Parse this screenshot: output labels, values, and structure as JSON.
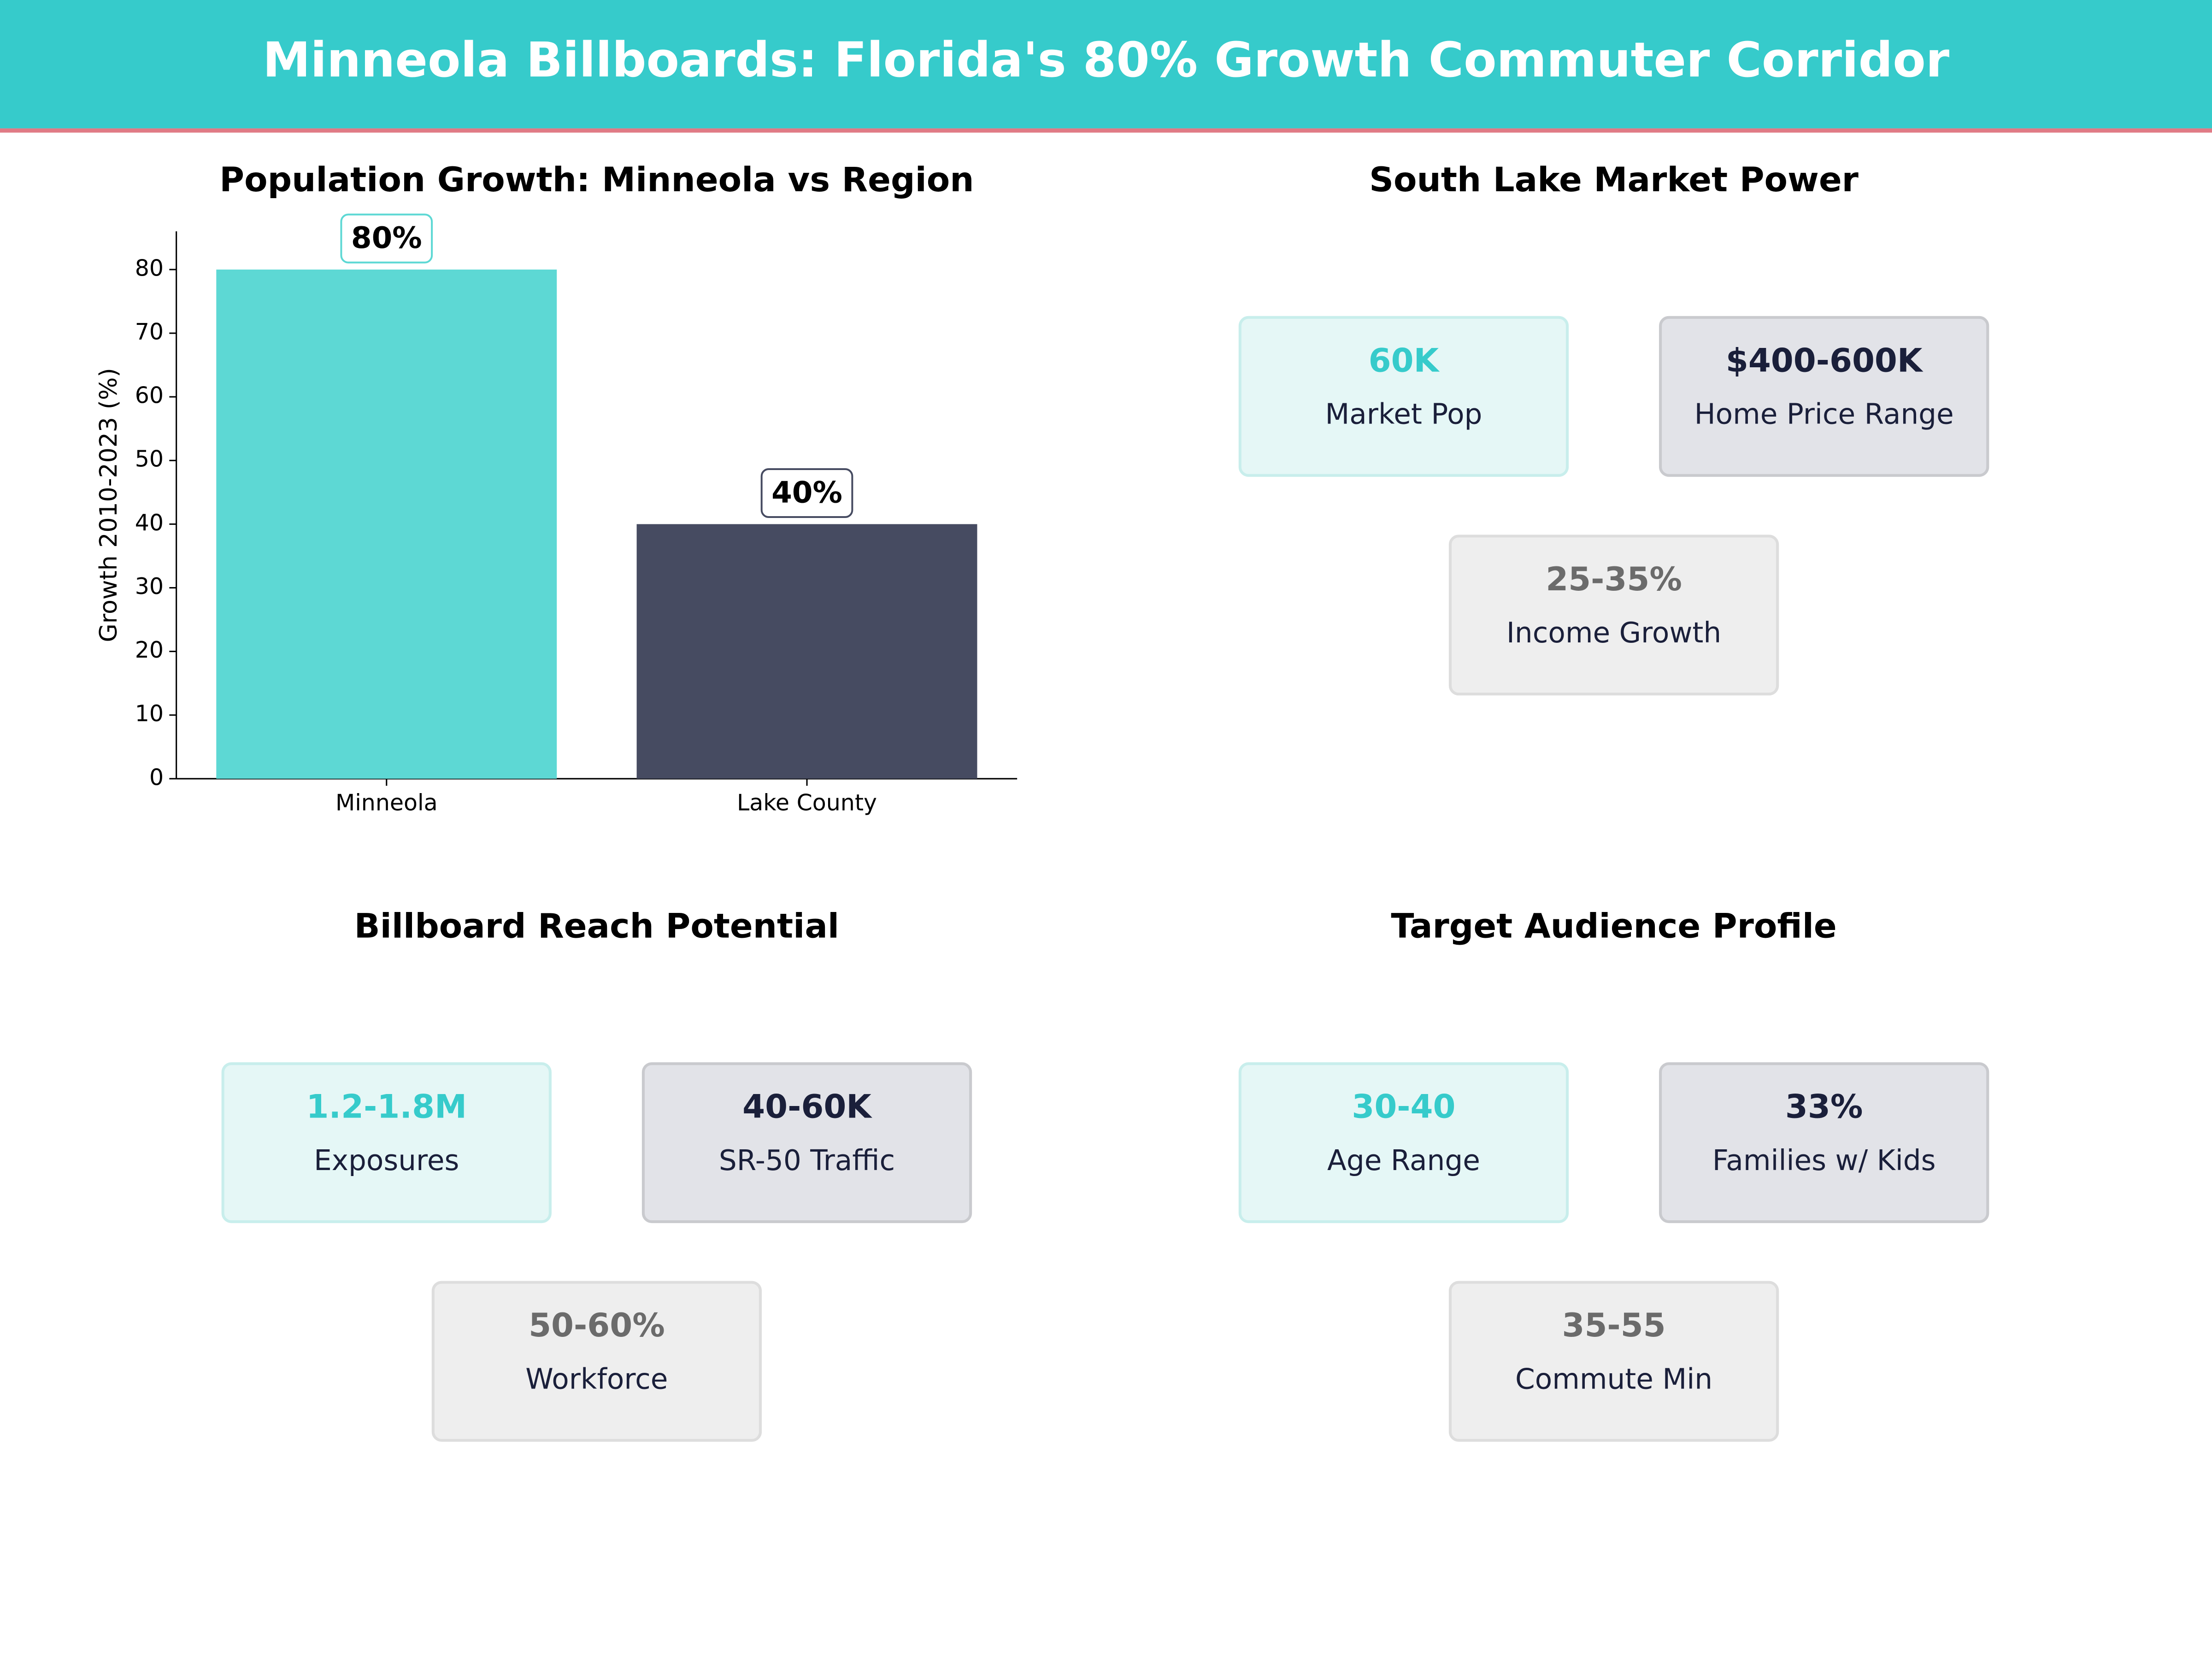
{
  "title": "Minneola Billboards: Florida's 80% Growth Commuter Corridor",
  "chart_data": {
    "type": "bar",
    "title": "Population Growth: Minneola vs Region",
    "categories": [
      "Minneola",
      "Lake County"
    ],
    "values": [
      80,
      40
    ],
    "value_labels": [
      "80%",
      "40%"
    ],
    "colors": [
      "#5dd8d4",
      "#464b61"
    ],
    "label_borders": [
      "#5dd8d4",
      "#464b61"
    ],
    "ylabel": "Growth 2010-2023 (%)",
    "ylim": [
      0,
      86
    ],
    "yticks": [
      0,
      10,
      20,
      30,
      40,
      50,
      60,
      70,
      80
    ],
    "grid": false
  },
  "panels": [
    {
      "title": "South Lake Market Power",
      "cards": [
        {
          "value": "60K",
          "label": "Market Pop"
        },
        {
          "value": "$400-600K",
          "label": "Home Price Range"
        },
        {
          "value": "25-35%",
          "label": "Income Growth"
        }
      ]
    },
    {
      "title": "Billboard Reach Potential",
      "cards": [
        {
          "value": "1.2-1.8M",
          "label": "Exposures"
        },
        {
          "value": "40-60K",
          "label": "SR-50 Traffic"
        },
        {
          "value": "50-60%",
          "label": "Workforce"
        }
      ]
    },
    {
      "title": "Target Audience Profile",
      "cards": [
        {
          "value": "30-40",
          "label": "Age Range"
        },
        {
          "value": "33%",
          "label": "Families w/ Kids"
        },
        {
          "value": "35-55",
          "label": "Commute Min"
        }
      ]
    }
  ]
}
